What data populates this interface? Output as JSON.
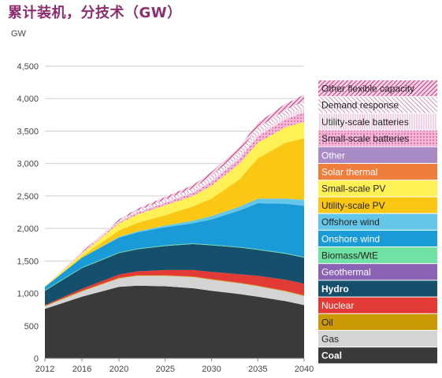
{
  "chart_data": {
    "type": "area",
    "title": "累计装机，分技术（GW）",
    "ylabel": "GW",
    "xlabel": "",
    "ylim": [
      0,
      4500
    ],
    "xlim": [
      2012,
      2040
    ],
    "grid": true,
    "legend_position": "right",
    "x_ticks": [
      "2012",
      "2016",
      "2020",
      "2025",
      "2030",
      "2035",
      "2040"
    ],
    "y_ticks": [
      "0",
      "500",
      "1,000",
      "1,500",
      "2,000",
      "2,500",
      "3,000",
      "3,500",
      "4,000",
      "4,500"
    ],
    "x": [
      2012,
      2016,
      2020,
      2022,
      2025,
      2028,
      2030,
      2033,
      2035,
      2038,
      2040
    ],
    "series": [
      {
        "name": "Coal",
        "color": "#3a3a3a",
        "values": [
          760,
          950,
          1100,
          1120,
          1110,
          1080,
          1040,
          990,
          950,
          880,
          820
        ]
      },
      {
        "name": "Gas",
        "color": "#d4d4d4",
        "values": [
          40,
          80,
          130,
          150,
          160,
          170,
          170,
          165,
          160,
          150,
          140
        ]
      },
      {
        "name": "Oil",
        "color": "#cc9a06",
        "values": [
          10,
          10,
          10,
          10,
          10,
          10,
          10,
          10,
          10,
          10,
          10
        ]
      },
      {
        "name": "Nuclear",
        "color": "#e23a34",
        "values": [
          10,
          30,
          50,
          60,
          80,
          100,
          110,
          130,
          150,
          170,
          180
        ]
      },
      {
        "name": "Hydro",
        "color": "#164f6c",
        "values": [
          220,
          320,
          330,
          340,
          370,
          400,
          410,
          410,
          400,
          400,
          400
        ]
      },
      {
        "name": "Geothermal",
        "color": "#8b63b5",
        "values": [
          0,
          0,
          0,
          0,
          0,
          0,
          0,
          0,
          0,
          0,
          0
        ]
      },
      {
        "name": "Biomass/WtE",
        "color": "#6fe2a4",
        "values": [
          10,
          10,
          10,
          10,
          10,
          10,
          10,
          10,
          10,
          10,
          10
        ]
      },
      {
        "name": "Onshore wind",
        "color": "#1a9bd8",
        "values": [
          50,
          150,
          230,
          250,
          280,
          310,
          390,
          560,
          710,
          760,
          790
        ]
      },
      {
        "name": "Offshore wind",
        "color": "#64c7ea",
        "values": [
          0,
          0,
          10,
          15,
          25,
          40,
          50,
          60,
          70,
          80,
          90
        ]
      },
      {
        "name": "Utility-scale PV",
        "color": "#fac814",
        "values": [
          0,
          20,
          100,
          130,
          160,
          220,
          270,
          420,
          620,
          860,
          950
        ]
      },
      {
        "name": "Small-scale PV",
        "color": "#fff056",
        "values": [
          10,
          40,
          110,
          130,
          150,
          160,
          200,
          240,
          240,
          240,
          250
        ]
      },
      {
        "name": "Solar thermal",
        "color": "#ef7d3c",
        "values": [
          0,
          0,
          0,
          0,
          0,
          0,
          0,
          0,
          0,
          0,
          0
        ]
      },
      {
        "name": "Other",
        "color": "#a88bc6",
        "values": [
          0,
          0,
          0,
          0,
          0,
          0,
          0,
          0,
          0,
          0,
          0
        ]
      },
      {
        "name": "Small-scale batteries",
        "color": "#d84f99",
        "values": [
          0,
          10,
          20,
          30,
          40,
          50,
          60,
          80,
          100,
          120,
          150
        ]
      },
      {
        "name": "Utility-scale batteries",
        "color": "#e6a3cf",
        "values": [
          0,
          0,
          0,
          0,
          10,
          20,
          30,
          40,
          50,
          60,
          70
        ]
      },
      {
        "name": "Demand response",
        "color": "#b8518a",
        "values": [
          0,
          10,
          20,
          30,
          40,
          50,
          60,
          70,
          80,
          90,
          100
        ]
      },
      {
        "name": "Other flexible capacity",
        "color": "#c0337b",
        "values": [
          0,
          10,
          20,
          30,
          40,
          50,
          60,
          70,
          80,
          90,
          100
        ]
      }
    ]
  }
}
